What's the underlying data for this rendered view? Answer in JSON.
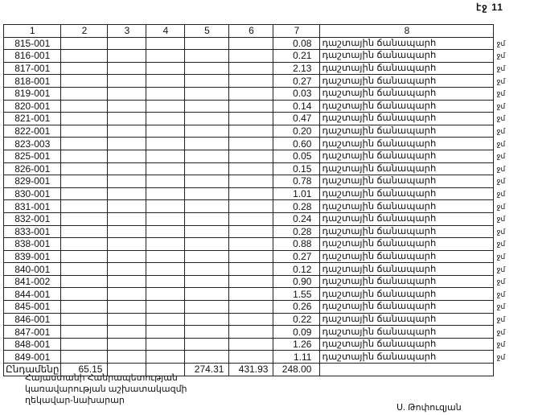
{
  "page_label": "էջ 11",
  "table": {
    "headers": [
      "1",
      "2",
      "3",
      "4",
      "5",
      "6",
      "7",
      "8"
    ],
    "road_type": "դաշտային ճանապարհ",
    "road_tail": "ջմ",
    "rows": [
      {
        "code": "815-001",
        "value": "0.08"
      },
      {
        "code": "816-001",
        "value": "0.21"
      },
      {
        "code": "817-001",
        "value": "2.13"
      },
      {
        "code": "818-001",
        "value": "0.27"
      },
      {
        "code": "819-001",
        "value": "0.03"
      },
      {
        "code": "820-001",
        "value": "0.14"
      },
      {
        "code": "821-001",
        "value": "0.47"
      },
      {
        "code": "822-001",
        "value": "0.20"
      },
      {
        "code": "823-003",
        "value": "0.60"
      },
      {
        "code": "825-001",
        "value": "0.05"
      },
      {
        "code": "826-001",
        "value": "0.15"
      },
      {
        "code": "829-001",
        "value": "0.78"
      },
      {
        "code": "830-001",
        "value": "1.01"
      },
      {
        "code": "831-001",
        "value": "0.28"
      },
      {
        "code": "832-001",
        "value": "0.24"
      },
      {
        "code": "833-001",
        "value": "0.28"
      },
      {
        "code": "838-001",
        "value": "0.88"
      },
      {
        "code": "839-001",
        "value": "0.27"
      },
      {
        "code": "840-001",
        "value": "0.12"
      },
      {
        "code": "841-002",
        "value": "0.90"
      },
      {
        "code": "844-001",
        "value": "1.55"
      },
      {
        "code": "845-001",
        "value": "0.26"
      },
      {
        "code": "846-001",
        "value": "0.22"
      },
      {
        "code": "847-001",
        "value": "0.09"
      },
      {
        "code": "848-001",
        "value": "1.26"
      },
      {
        "code": "849-001",
        "value": "1.11"
      }
    ],
    "total": {
      "label": "Ընդամենը",
      "col2": "65.15",
      "col5": "274.31",
      "col6": "431.93",
      "col7": "248.00"
    }
  },
  "footer": {
    "lines": [
      "Հայաստանի Հանրապետության",
      "կառավարության աշխատակազմի",
      "ղեկավար-նախարար"
    ],
    "signature": "Ս. Թոփուզյան"
  }
}
